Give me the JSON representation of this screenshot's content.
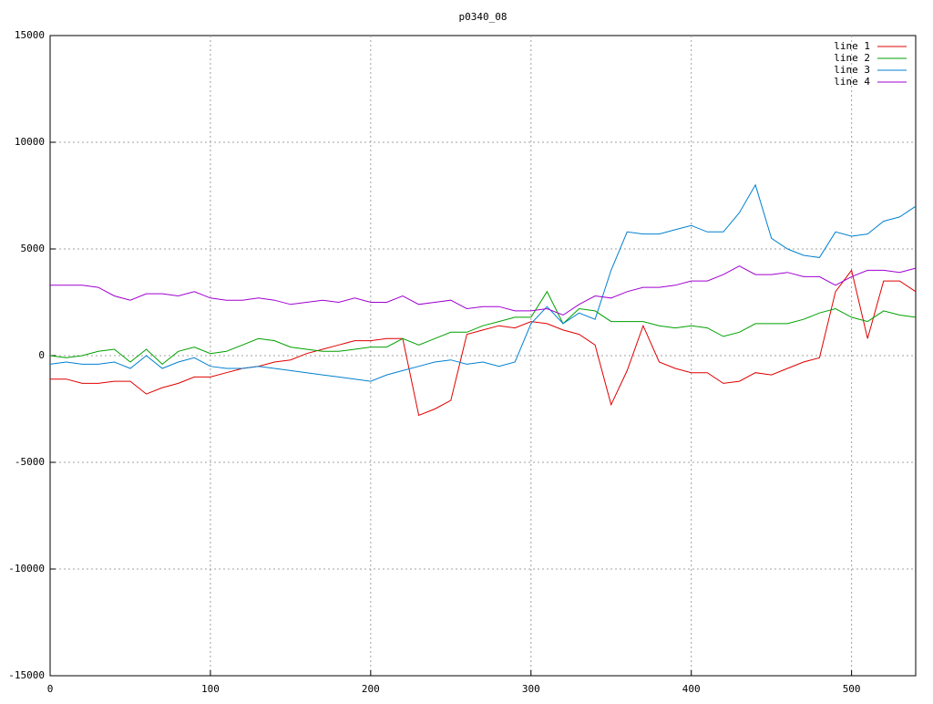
{
  "chart_data": {
    "type": "line",
    "title": "p0340_08",
    "x": [
      0,
      10,
      20,
      30,
      40,
      50,
      60,
      70,
      80,
      90,
      100,
      110,
      120,
      130,
      140,
      150,
      160,
      170,
      180,
      190,
      200,
      210,
      220,
      230,
      240,
      250,
      260,
      270,
      280,
      290,
      300,
      310,
      320,
      330,
      340,
      350,
      360,
      370,
      380,
      390,
      400,
      410,
      420,
      430,
      440,
      450,
      460,
      470,
      480,
      490,
      500,
      510,
      520,
      530,
      540
    ],
    "series": [
      {
        "name": "line 1",
        "color": "#e00000",
        "values": [
          -1100,
          -1100,
          -1300,
          -1300,
          -1200,
          -1200,
          -1800,
          -1500,
          -1300,
          -1000,
          -1000,
          -800,
          -600,
          -500,
          -300,
          -200,
          100,
          300,
          500,
          700,
          700,
          800,
          800,
          -2800,
          -2500,
          -2100,
          1000,
          1200,
          1400,
          1300,
          1600,
          1500,
          1200,
          1000,
          500,
          -2300,
          -700,
          1400,
          -300,
          -600,
          -800,
          -800,
          -1300,
          -1200,
          -800,
          -900,
          -600,
          -300,
          -100,
          3000,
          4000,
          800,
          3500,
          3500,
          3000
        ]
      },
      {
        "name": "line 2",
        "color": "#00a000",
        "values": [
          0,
          -100,
          0,
          200,
          300,
          -300,
          300,
          -400,
          200,
          400,
          100,
          200,
          500,
          800,
          700,
          400,
          300,
          200,
          200,
          300,
          400,
          400,
          800,
          500,
          800,
          1100,
          1100,
          1400,
          1600,
          1800,
          1800,
          3000,
          1500,
          2200,
          2100,
          1600,
          1600,
          1600,
          1400,
          1300,
          1400,
          1300,
          900,
          1100,
          1500,
          1500,
          1500,
          1700,
          2000,
          2200,
          1800,
          1600,
          2100,
          1900,
          1800
        ]
      },
      {
        "name": "line 3",
        "color": "#0080d0",
        "values": [
          -400,
          -300,
          -400,
          -400,
          -300,
          -600,
          0,
          -600,
          -300,
          -100,
          -500,
          -600,
          -600,
          -500,
          -600,
          -700,
          -800,
          -900,
          -1000,
          -1100,
          -1200,
          -900,
          -700,
          -500,
          -300,
          -200,
          -400,
          -300,
          -500,
          -300,
          1500,
          2300,
          1500,
          2000,
          1700,
          4000,
          5800,
          5700,
          5700,
          5900,
          6100,
          5800,
          5800,
          6700,
          8000,
          5500,
          5000,
          4700,
          4600,
          5800,
          5600,
          5700,
          6300,
          6500,
          7000
        ]
      },
      {
        "name": "line 4",
        "color": "#a000d0",
        "values": [
          3300,
          3300,
          3300,
          3200,
          2800,
          2600,
          2900,
          2900,
          2800,
          3000,
          2700,
          2600,
          2600,
          2700,
          2600,
          2400,
          2500,
          2600,
          2500,
          2700,
          2500,
          2500,
          2800,
          2400,
          2500,
          2600,
          2200,
          2300,
          2300,
          2100,
          2100,
          2200,
          1900,
          2400,
          2800,
          2700,
          3000,
          3200,
          3200,
          3300,
          3500,
          3500,
          3800,
          4200,
          3800,
          3800,
          3900,
          3700,
          3700,
          3300,
          3700,
          4000,
          4000,
          3900,
          4100
        ]
      }
    ],
    "xlim": [
      0,
      540
    ],
    "xticks": [
      0,
      100,
      200,
      300,
      400,
      500
    ],
    "ylim": [
      -15000,
      15000
    ],
    "yticks": [
      -15000,
      -10000,
      -5000,
      0,
      5000,
      10000,
      15000
    ],
    "grid": true,
    "legend": "top-right"
  }
}
